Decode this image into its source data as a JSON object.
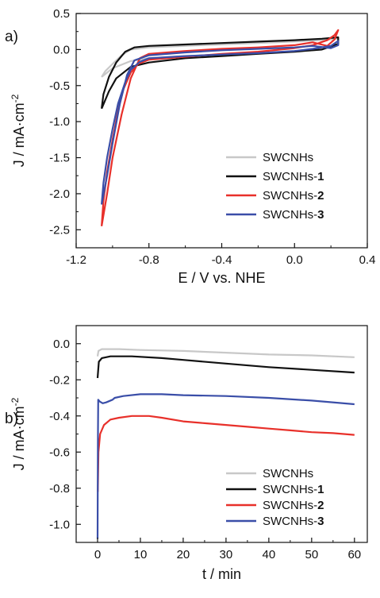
{
  "chart_data": [
    {
      "type": "line",
      "panel_label": "a)",
      "xlabel": "E / V vs. NHE",
      "ylabel_main": "J / mA·cm",
      "ylabel_sup": "-2",
      "xlim": [
        -1.2,
        0.4
      ],
      "ylim": [
        -2.75,
        0.5
      ],
      "xticks": [
        -1.2,
        -0.8,
        -0.4,
        0.0,
        0.4
      ],
      "xtick_labels": [
        "-1.2",
        "-0.8",
        "-0.4",
        "0.0",
        "0.4"
      ],
      "yticks": [
        0.5,
        0.0,
        -0.5,
        -1.0,
        -1.5,
        -2.0,
        -2.5
      ],
      "ytick_labels": [
        "0.5",
        "0.0",
        "-0.5",
        "-1.0",
        "-1.5",
        "-2.0",
        "-2.5"
      ],
      "grid": false,
      "legend_position": "lower-right",
      "series": [
        {
          "legend_base": "SWCNHs",
          "legend_bold": "",
          "color": "#c8c8c8",
          "points": [
            [
              -1.06,
              -0.38
            ],
            [
              -1.04,
              -0.3
            ],
            [
              -1.0,
              -0.2
            ],
            [
              -0.95,
              -0.08
            ],
            [
              -0.9,
              0.0
            ],
            [
              -0.8,
              0.03
            ],
            [
              -0.6,
              0.05
            ],
            [
              -0.4,
              0.07
            ],
            [
              -0.2,
              0.09
            ],
            [
              0.0,
              0.11
            ],
            [
              0.15,
              0.13
            ],
            [
              0.24,
              0.15
            ],
            [
              0.24,
              0.07
            ],
            [
              0.15,
              0.0
            ],
            [
              0.0,
              -0.03
            ],
            [
              -0.2,
              -0.05
            ],
            [
              -0.4,
              -0.07
            ],
            [
              -0.6,
              -0.09
            ],
            [
              -0.8,
              -0.12
            ],
            [
              -0.9,
              -0.16
            ],
            [
              -1.0,
              -0.26
            ],
            [
              -1.06,
              -0.38
            ]
          ]
        },
        {
          "legend_base": "SWCNHs-",
          "legend_bold": "1",
          "color": "#111111",
          "points": [
            [
              -1.06,
              -0.82
            ],
            [
              -1.05,
              -0.62
            ],
            [
              -1.02,
              -0.38
            ],
            [
              -0.98,
              -0.18
            ],
            [
              -0.93,
              -0.03
            ],
            [
              -0.88,
              0.03
            ],
            [
              -0.8,
              0.05
            ],
            [
              -0.6,
              0.07
            ],
            [
              -0.4,
              0.09
            ],
            [
              -0.2,
              0.11
            ],
            [
              0.0,
              0.13
            ],
            [
              0.15,
              0.15
            ],
            [
              0.24,
              0.17
            ],
            [
              0.24,
              0.08
            ],
            [
              0.15,
              0.0
            ],
            [
              0.0,
              -0.03
            ],
            [
              -0.2,
              -0.06
            ],
            [
              -0.4,
              -0.09
            ],
            [
              -0.6,
              -0.12
            ],
            [
              -0.8,
              -0.18
            ],
            [
              -0.9,
              -0.24
            ],
            [
              -0.98,
              -0.4
            ],
            [
              -1.02,
              -0.58
            ],
            [
              -1.06,
              -0.82
            ]
          ]
        },
        {
          "legend_base": "SWCNHs-",
          "legend_bold": "2",
          "color": "#e8302a",
          "points": [
            [
              -1.06,
              -2.45
            ],
            [
              -1.05,
              -2.1
            ],
            [
              -1.03,
              -1.7
            ],
            [
              -1.0,
              -1.25
            ],
            [
              -0.97,
              -0.85
            ],
            [
              -0.94,
              -0.55
            ],
            [
              -0.9,
              -0.32
            ],
            [
              -0.86,
              -0.2
            ],
            [
              -0.8,
              -0.14
            ],
            [
              -0.6,
              -0.1
            ],
            [
              -0.4,
              -0.06
            ],
            [
              -0.2,
              -0.03
            ],
            [
              0.0,
              0.02
            ],
            [
              0.1,
              0.06
            ],
            [
              0.18,
              0.13
            ],
            [
              0.22,
              0.2
            ],
            [
              0.24,
              0.27
            ],
            [
              0.22,
              0.14
            ],
            [
              0.18,
              0.05
            ],
            [
              0.1,
              0.1
            ],
            [
              0.0,
              0.06
            ],
            [
              -0.2,
              0.03
            ],
            [
              -0.4,
              0.01
            ],
            [
              -0.6,
              -0.02
            ],
            [
              -0.8,
              -0.06
            ],
            [
              -0.85,
              -0.12
            ],
            [
              -0.9,
              -0.4
            ],
            [
              -0.95,
              -0.9
            ],
            [
              -1.0,
              -1.5
            ],
            [
              -1.03,
              -2.0
            ],
            [
              -1.06,
              -2.45
            ]
          ]
        },
        {
          "legend_base": "SWCNHs-",
          "legend_bold": "3",
          "color": "#3a4ea8",
          "points": [
            [
              -1.06,
              -2.15
            ],
            [
              -1.05,
              -1.85
            ],
            [
              -1.03,
              -1.5
            ],
            [
              -1.0,
              -1.1
            ],
            [
              -0.97,
              -0.75
            ],
            [
              -0.93,
              -0.45
            ],
            [
              -0.9,
              -0.28
            ],
            [
              -0.85,
              -0.17
            ],
            [
              -0.8,
              -0.12
            ],
            [
              -0.6,
              -0.09
            ],
            [
              -0.4,
              -0.07
            ],
            [
              -0.2,
              -0.05
            ],
            [
              0.0,
              -0.02
            ],
            [
              0.1,
              0.01
            ],
            [
              0.2,
              0.05
            ],
            [
              0.24,
              0.12
            ],
            [
              0.24,
              0.06
            ],
            [
              0.2,
              0.02
            ],
            [
              0.1,
              0.05
            ],
            [
              0.0,
              0.03
            ],
            [
              -0.2,
              0.01
            ],
            [
              -0.4,
              -0.01
            ],
            [
              -0.6,
              -0.04
            ],
            [
              -0.8,
              -0.08
            ],
            [
              -0.88,
              -0.15
            ],
            [
              -0.92,
              -0.35
            ],
            [
              -0.96,
              -0.75
            ],
            [
              -1.0,
              -1.3
            ],
            [
              -1.03,
              -1.75
            ],
            [
              -1.06,
              -2.15
            ]
          ]
        }
      ]
    },
    {
      "type": "line",
      "panel_label": "b)",
      "xlabel": "t / min",
      "ylabel_main": "J / mA·cm",
      "ylabel_sup": "-2",
      "xlim": [
        -5,
        63
      ],
      "ylim": [
        -1.1,
        0.1
      ],
      "xticks": [
        0,
        10,
        20,
        30,
        40,
        50,
        60
      ],
      "xtick_labels": [
        "0",
        "10",
        "20",
        "30",
        "40",
        "50",
        "60"
      ],
      "yticks": [
        0.0,
        -0.2,
        -0.4,
        -0.6,
        -0.8,
        -1.0
      ],
      "ytick_labels": [
        "0.0",
        "-0.2",
        "-0.4",
        "-0.6",
        "-0.8",
        "-1.0"
      ],
      "grid": false,
      "legend_position": "lower-right",
      "series": [
        {
          "legend_base": "SWCNHs",
          "legend_bold": "",
          "color": "#c8c8c8",
          "points": [
            [
              0.0,
              -0.07
            ],
            [
              0.2,
              -0.04
            ],
            [
              1,
              -0.03
            ],
            [
              5,
              -0.03
            ],
            [
              10,
              -0.035
            ],
            [
              20,
              -0.04
            ],
            [
              30,
              -0.05
            ],
            [
              40,
              -0.06
            ],
            [
              50,
              -0.065
            ],
            [
              60,
              -0.075
            ]
          ]
        },
        {
          "legend_base": "SWCNHs-",
          "legend_bold": "1",
          "color": "#111111",
          "points": [
            [
              0.0,
              -0.19
            ],
            [
              0.3,
              -0.1
            ],
            [
              1,
              -0.08
            ],
            [
              3,
              -0.07
            ],
            [
              8,
              -0.07
            ],
            [
              15,
              -0.08
            ],
            [
              20,
              -0.09
            ],
            [
              30,
              -0.11
            ],
            [
              40,
              -0.13
            ],
            [
              50,
              -0.145
            ],
            [
              60,
              -0.16
            ]
          ]
        },
        {
          "legend_base": "SWCNHs-",
          "legend_bold": "2",
          "color": "#e8302a",
          "points": [
            [
              0.05,
              -0.82
            ],
            [
              0.2,
              -0.6
            ],
            [
              0.6,
              -0.5
            ],
            [
              1.5,
              -0.45
            ],
            [
              3,
              -0.42
            ],
            [
              5,
              -0.41
            ],
            [
              8,
              -0.4
            ],
            [
              12,
              -0.4
            ],
            [
              15,
              -0.41
            ],
            [
              20,
              -0.43
            ],
            [
              25,
              -0.44
            ],
            [
              30,
              -0.45
            ],
            [
              35,
              -0.46
            ],
            [
              40,
              -0.47
            ],
            [
              45,
              -0.48
            ],
            [
              50,
              -0.49
            ],
            [
              55,
              -0.495
            ],
            [
              60,
              -0.505
            ]
          ]
        },
        {
          "legend_base": "SWCNHs-",
          "legend_bold": "3",
          "color": "#3a4ea8",
          "points": [
            [
              0.0,
              -1.08
            ],
            [
              0.08,
              -0.55
            ],
            [
              0.15,
              -0.31
            ],
            [
              0.5,
              -0.32
            ],
            [
              1.2,
              -0.33
            ],
            [
              2,
              -0.325
            ],
            [
              3.5,
              -0.31
            ],
            [
              4,
              -0.3
            ],
            [
              6,
              -0.29
            ],
            [
              10,
              -0.28
            ],
            [
              15,
              -0.28
            ],
            [
              20,
              -0.285
            ],
            [
              30,
              -0.29
            ],
            [
              40,
              -0.3
            ],
            [
              50,
              -0.315
            ],
            [
              60,
              -0.335
            ]
          ]
        }
      ]
    }
  ]
}
